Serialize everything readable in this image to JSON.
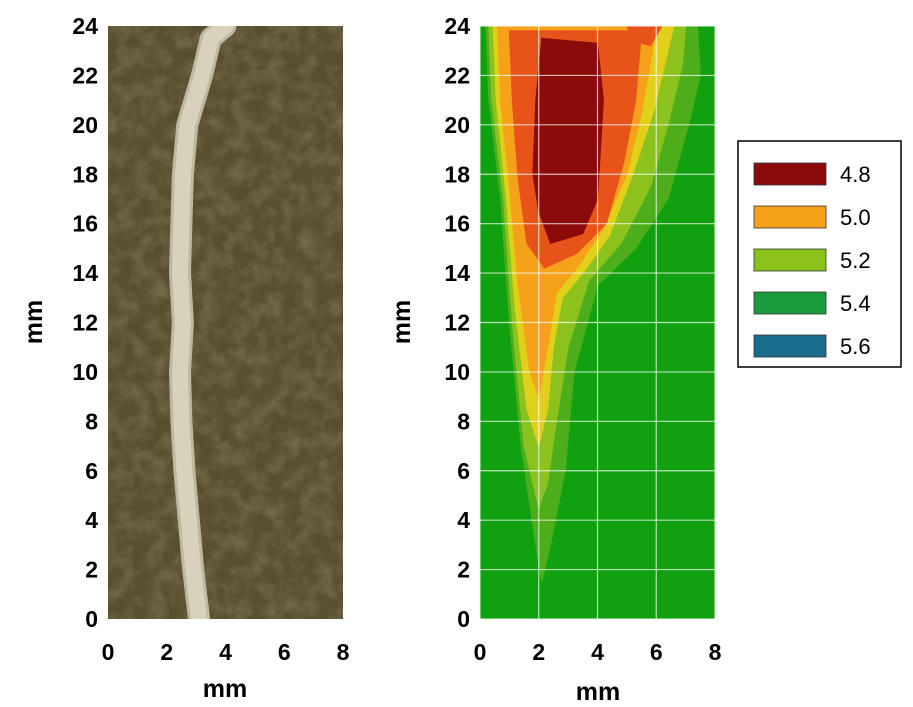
{
  "chart_data": [
    {
      "type": "image",
      "xlabel": "mm",
      "ylabel": "mm",
      "xlim": [
        0,
        8
      ],
      "ylim": [
        0,
        24
      ],
      "xticks": [
        "0",
        "2",
        "4",
        "6",
        "8"
      ],
      "yticks": [
        "0",
        "2",
        "4",
        "6",
        "8",
        "10",
        "12",
        "14",
        "16",
        "18",
        "20",
        "22",
        "24"
      ],
      "root_path": [
        [
          3.1,
          0
        ],
        [
          2.9,
          2
        ],
        [
          2.75,
          4
        ],
        [
          2.6,
          6
        ],
        [
          2.5,
          8
        ],
        [
          2.45,
          10
        ],
        [
          2.55,
          12
        ],
        [
          2.45,
          14
        ],
        [
          2.5,
          16
        ],
        [
          2.55,
          18
        ],
        [
          2.7,
          20
        ],
        [
          3.2,
          22
        ],
        [
          3.5,
          23.5
        ],
        [
          4.0,
          24
        ]
      ],
      "colors": {
        "soil": "#5a4e30",
        "root": "#d6d2bc"
      }
    },
    {
      "type": "contour",
      "xlabel": "mm",
      "ylabel": "mm",
      "xlim": [
        0,
        8
      ],
      "ylim": [
        0,
        24
      ],
      "grid": true,
      "xticks": [
        "0",
        "2",
        "4",
        "6",
        "8"
      ],
      "yticks": [
        "0",
        "2",
        "4",
        "6",
        "8",
        "10",
        "12",
        "14",
        "16",
        "18",
        "20",
        "22",
        "24"
      ],
      "legend": {
        "position": "right",
        "entries": [
          {
            "label": "4.8",
            "color": "#8b0a0a"
          },
          {
            "label": "5.0",
            "color": "#f5a21a"
          },
          {
            "label": "5.2",
            "color": "#8cc21e"
          },
          {
            "label": "5.4",
            "color": "#1a9a3c"
          },
          {
            "label": "5.6",
            "color": "#1a6c8c"
          }
        ]
      },
      "regions": [
        {
          "level": "5.4",
          "color": "#10a010",
          "polygon": [
            [
              0,
              0
            ],
            [
              8,
              0
            ],
            [
              8,
              24
            ],
            [
              0,
              24
            ]
          ]
        },
        {
          "level": "5.3",
          "color": "#4dad1a",
          "polygon": [
            [
              0.2,
              24
            ],
            [
              0.3,
              21
            ],
            [
              0.7,
              17
            ],
            [
              1.0,
              12
            ],
            [
              1.4,
              7
            ],
            [
              1.9,
              3
            ],
            [
              2.1,
              1.5
            ],
            [
              2.4,
              3
            ],
            [
              2.9,
              6
            ],
            [
              3.2,
              10
            ],
            [
              4.0,
              13.5
            ],
            [
              5.3,
              15
            ],
            [
              6.4,
              17
            ],
            [
              7.1,
              20
            ],
            [
              7.5,
              22
            ],
            [
              7.4,
              24
            ]
          ]
        },
        {
          "level": "5.2",
          "color": "#8cc21e",
          "polygon": [
            [
              0.3,
              24
            ],
            [
              0.4,
              21
            ],
            [
              0.8,
              17
            ],
            [
              1.1,
              12
            ],
            [
              1.5,
              7
            ],
            [
              2.0,
              4.5
            ],
            [
              2.3,
              5.5
            ],
            [
              2.6,
              8
            ],
            [
              3.0,
              11
            ],
            [
              3.7,
              13.7
            ],
            [
              4.8,
              15.2
            ],
            [
              5.8,
              17.5
            ],
            [
              6.4,
              20
            ],
            [
              6.9,
              22.5
            ],
            [
              7.0,
              24
            ]
          ]
        },
        {
          "level": "5.1",
          "color": "#e0d019",
          "polygon": [
            [
              0.45,
              24
            ],
            [
              0.55,
              21
            ],
            [
              0.9,
              17
            ],
            [
              1.2,
              12.5
            ],
            [
              1.6,
              8.5
            ],
            [
              2.0,
              7
            ],
            [
              2.3,
              8.5
            ],
            [
              2.5,
              11
            ],
            [
              2.8,
              13
            ],
            [
              3.5,
              14
            ],
            [
              4.4,
              15.5
            ],
            [
              5.2,
              18
            ],
            [
              5.9,
              20.5
            ],
            [
              6.3,
              22.5
            ],
            [
              6.6,
              24
            ]
          ]
        },
        {
          "level": "5.0",
          "color": "#f5a21a",
          "polygon": [
            [
              0.6,
              24
            ],
            [
              0.7,
              21
            ],
            [
              1.0,
              17.5
            ],
            [
              1.3,
              13.5
            ],
            [
              1.7,
              10
            ],
            [
              2.0,
              9
            ],
            [
              2.3,
              11
            ],
            [
              2.6,
              13.2
            ],
            [
              3.3,
              14.2
            ],
            [
              4.2,
              15.8
            ],
            [
              5.0,
              18
            ],
            [
              5.5,
              20.5
            ],
            [
              5.8,
              22.5
            ],
            [
              6.0,
              24
            ]
          ]
        },
        {
          "level": "4.9",
          "color": "#e8531a",
          "polygon": [
            [
              1.0,
              23.8
            ],
            [
              1.1,
              21
            ],
            [
              1.3,
              17.8
            ],
            [
              1.6,
              15.2
            ],
            [
              2.2,
              14.2
            ],
            [
              3.3,
              14.8
            ],
            [
              4.3,
              16.0
            ],
            [
              4.9,
              18.5
            ],
            [
              5.3,
              21
            ],
            [
              5.5,
              23.8
            ]
          ]
        },
        {
          "level": "4.8",
          "color": "#8b0a0a",
          "polygon": [
            [
              2.1,
              23.5
            ],
            [
              1.9,
              21
            ],
            [
              1.8,
              18
            ],
            [
              2.0,
              16.5
            ],
            [
              2.4,
              15.2
            ],
            [
              3.5,
              15.6
            ],
            [
              4.0,
              17
            ],
            [
              4.2,
              21
            ],
            [
              4.0,
              23.3
            ]
          ]
        },
        {
          "level": "4.9",
          "color": "#e8531a",
          "polygon": [
            [
              5.0,
              24
            ],
            [
              5.2,
              23.4
            ],
            [
              5.8,
              23.2
            ],
            [
              6.2,
              24
            ]
          ]
        }
      ]
    }
  ]
}
